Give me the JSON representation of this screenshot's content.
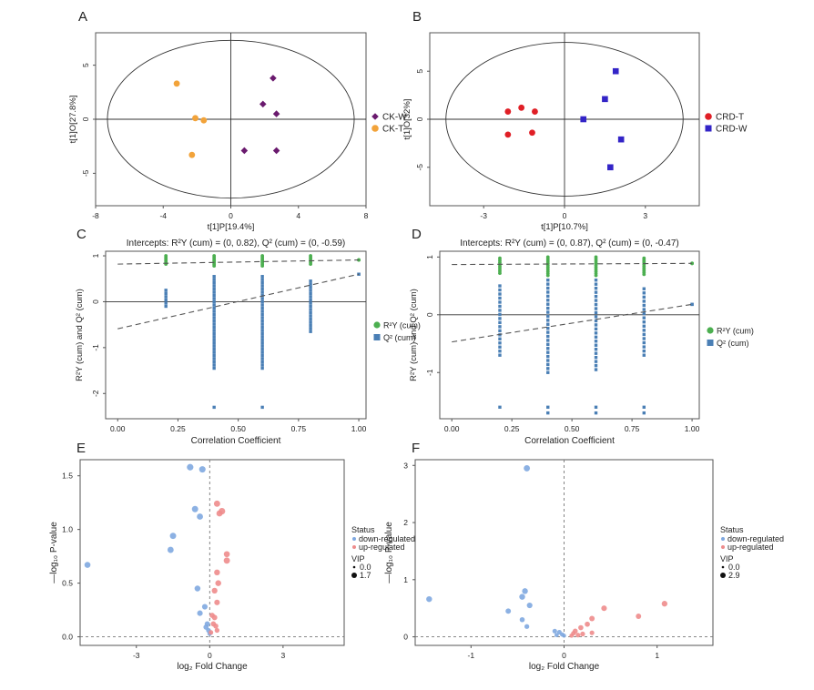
{
  "panels": [
    {
      "letter": "A"
    },
    {
      "letter": "B"
    },
    {
      "letter": "C"
    },
    {
      "letter": "D"
    },
    {
      "letter": "E"
    },
    {
      "letter": "F"
    }
  ],
  "colors": {
    "ck_w": "#6a1a6e",
    "ck_t": "#f2a33a",
    "crd_t": "#e01f26",
    "crd_w": "#3324c7",
    "r2y": "#4caf50",
    "q2": "#4a7fb5",
    "down": "#7fa8e0",
    "up": "#ee8c8c"
  },
  "chart_data": [
    {
      "id": "A",
      "type": "scatter",
      "title": "",
      "xlabel": "t[1]P[19.4%]",
      "ylabel": "t[1]O[27.8%]",
      "xlim": [
        -8,
        8
      ],
      "ylim": [
        -8,
        8
      ],
      "xticks": [
        "-8",
        "-4",
        "0",
        "4",
        "8"
      ],
      "yticks": [
        "5",
        "0",
        "-5"
      ],
      "ellipse": {
        "rx": 7.3,
        "ry": 7.3
      },
      "series": [
        {
          "name": "CK-W",
          "marker": "diamond",
          "color": "#6a1a6e",
          "points": [
            [
              2.5,
              3.8
            ],
            [
              1.9,
              1.4
            ],
            [
              2.7,
              0.5
            ],
            [
              0.8,
              -2.9
            ],
            [
              2.7,
              -2.9
            ]
          ]
        },
        {
          "name": "CK-T",
          "marker": "circle",
          "color": "#f2a33a",
          "points": [
            [
              -3.2,
              3.3
            ],
            [
              -2.1,
              0.1
            ],
            [
              -1.6,
              -0.1
            ],
            [
              -2.3,
              -3.3
            ]
          ]
        }
      ],
      "legend": [
        "CK-W",
        "CK-T"
      ]
    },
    {
      "id": "B",
      "type": "scatter",
      "title": "",
      "xlabel": "t[1]P[10.7%]",
      "ylabel": "t[1]O[32%]",
      "xlim": [
        -5,
        5
      ],
      "ylim": [
        -9,
        9
      ],
      "xticks": [
        "-3",
        "0",
        "3"
      ],
      "yticks": [
        "5",
        "0",
        "-5"
      ],
      "ellipse": {
        "rx": 4.4,
        "ry": 8.0
      },
      "series": [
        {
          "name": "CRD-T",
          "marker": "circle",
          "color": "#e01f26",
          "points": [
            [
              -2.1,
              0.8
            ],
            [
              -1.6,
              1.2
            ],
            [
              -1.1,
              0.8
            ],
            [
              -2.1,
              -1.6
            ],
            [
              -1.2,
              -1.4
            ]
          ]
        },
        {
          "name": "CRD-W",
          "marker": "square",
          "color": "#3324c7",
          "points": [
            [
              1.9,
              5.0
            ],
            [
              1.5,
              2.1
            ],
            [
              0.7,
              0.0
            ],
            [
              2.1,
              -2.1
            ],
            [
              1.7,
              -5.0
            ]
          ]
        }
      ],
      "legend": [
        "CRD-T",
        "CRD-W"
      ]
    },
    {
      "id": "C",
      "type": "scatter",
      "title": "Intercepts: R²Y (cum) = (0, 0.82), Q² (cum) = (0, -0.59)",
      "xlabel": "Correlation Coefficient",
      "ylabel": "R²Y (cum) and Q² (cum)",
      "xlim": [
        -0.05,
        1.03
      ],
      "ylim": [
        -2.55,
        1.1
      ],
      "xticks": [
        "0.00",
        "0.25",
        "0.50",
        "0.75",
        "1.00"
      ],
      "yticks": [
        "1",
        "0",
        "-1",
        "-2"
      ],
      "r2y_line": [
        [
          0,
          0.82
        ],
        [
          1.0,
          0.91
        ]
      ],
      "q2_line": [
        [
          0,
          -0.59
        ],
        [
          1.0,
          0.6
        ]
      ],
      "r2y_points": {
        "0.2": [
          0.82,
          1.0
        ],
        "0.4": [
          0.78,
          1.0
        ],
        "0.6": [
          0.78,
          1.0
        ],
        "0.8": [
          0.82,
          1.0
        ],
        "1.0": [
          0.91,
          0.91
        ]
      },
      "q2_points": {
        "0.2": [
          -0.1,
          0.25
        ],
        "0.4": [
          -1.45,
          0.55
        ],
        "0.6": [
          -1.45,
          0.55
        ],
        "0.8": [
          -0.65,
          0.45
        ],
        "1.0": [
          0.6,
          0.6
        ]
      },
      "q2_outliers": [
        [
          0.4,
          -2.3
        ],
        [
          0.6,
          -2.3
        ]
      ],
      "legend": [
        "R²Y (cum)",
        "Q² (cum)"
      ]
    },
    {
      "id": "D",
      "type": "scatter",
      "title": "Intercepts: R²Y (cum) = (0, 0.87), Q² (cum) = (0, -0.47)",
      "xlabel": "Correlation Coefficient",
      "ylabel": "R²Y (cum) and Q² (cum)",
      "xlim": [
        -0.05,
        1.03
      ],
      "ylim": [
        -1.8,
        1.1
      ],
      "xticks": [
        "0.00",
        "0.25",
        "0.50",
        "0.75",
        "1.00"
      ],
      "yticks": [
        "1",
        "0",
        "-1"
      ],
      "r2y_line": [
        [
          0,
          0.87
        ],
        [
          1.0,
          0.89
        ]
      ],
      "q2_line": [
        [
          0,
          -0.47
        ],
        [
          1.0,
          0.18
        ]
      ],
      "r2y_points": {
        "0.2": [
          0.72,
          0.98
        ],
        "0.4": [
          0.68,
          1.0
        ],
        "0.6": [
          0.68,
          1.0
        ],
        "0.8": [
          0.7,
          0.98
        ],
        "1.0": [
          0.89,
          0.89
        ]
      },
      "q2_points": {
        "0.2": [
          -0.7,
          0.5
        ],
        "0.4": [
          -1.0,
          0.6
        ],
        "0.6": [
          -0.95,
          0.6
        ],
        "0.8": [
          -0.7,
          0.45
        ],
        "1.0": [
          0.18,
          0.18
        ]
      },
      "q2_outliers": [
        [
          0.2,
          -1.6
        ],
        [
          0.4,
          -1.6
        ],
        [
          0.6,
          -1.6
        ],
        [
          0.8,
          -1.6
        ],
        [
          0.4,
          -1.7
        ],
        [
          0.6,
          -1.7
        ],
        [
          0.8,
          -1.7
        ]
      ],
      "legend": [
        "R²Y (cum)",
        "Q² (cum)"
      ]
    },
    {
      "id": "E",
      "type": "scatter",
      "title": "",
      "xlabel": "log₂ Fold Change",
      "ylabel": "—log₁₀ P-value",
      "xlim": [
        -5.3,
        5.5
      ],
      "ylim": [
        -0.08,
        1.65
      ],
      "xticks": [
        "-3",
        "0",
        "3"
      ],
      "yticks": [
        "0.0",
        "0.5",
        "1.0",
        "1.5"
      ],
      "threshold_y": 0.0,
      "threshold_x": 0.0,
      "legend_title": "Status",
      "legend": [
        "down-regulated",
        "up-regulated"
      ],
      "vip_title": "VIP",
      "vip_values": [
        "0.0",
        "1.7"
      ],
      "down": [
        [
          -5.0,
          0.67,
          1.3
        ],
        [
          -0.8,
          1.58,
          1.7
        ],
        [
          -0.3,
          1.56,
          1.6
        ],
        [
          -0.6,
          1.19,
          1.5
        ],
        [
          -0.4,
          1.12,
          1.4
        ],
        [
          -1.5,
          0.94,
          1.5
        ],
        [
          -1.6,
          0.81,
          1.4
        ],
        [
          -0.5,
          0.45,
          1.2
        ],
        [
          -0.4,
          0.22,
          1.0
        ],
        [
          -0.2,
          0.28,
          1.0
        ],
        [
          -0.1,
          0.12,
          0.8
        ],
        [
          -0.15,
          0.09,
          0.8
        ],
        [
          -0.05,
          0.06,
          0.6
        ],
        [
          0.0,
          0.03,
          0.5
        ]
      ],
      "up": [
        [
          0.3,
          1.24,
          1.5
        ],
        [
          0.5,
          1.17,
          1.7
        ],
        [
          0.4,
          1.15,
          1.4
        ],
        [
          0.7,
          0.77,
          1.3
        ],
        [
          0.7,
          0.71,
          1.5
        ],
        [
          0.3,
          0.6,
          1.2
        ],
        [
          0.35,
          0.5,
          1.2
        ],
        [
          0.2,
          0.43,
          1.1
        ],
        [
          0.3,
          0.32,
          1.0
        ],
        [
          0.1,
          0.2,
          0.8
        ],
        [
          0.2,
          0.18,
          0.9
        ],
        [
          0.15,
          0.12,
          0.8
        ],
        [
          0.25,
          0.1,
          0.7
        ],
        [
          0.3,
          0.06,
          0.6
        ],
        [
          0.05,
          0.04,
          0.5
        ]
      ]
    },
    {
      "id": "F",
      "type": "scatter",
      "title": "",
      "xlabel": "log₂ Fold Change",
      "ylabel": "—log₁₀ P-value",
      "xlim": [
        -1.6,
        1.6
      ],
      "ylim": [
        -0.15,
        3.1
      ],
      "xticks": [
        "-1",
        "0",
        "1"
      ],
      "yticks": [
        "0",
        "1",
        "2",
        "3"
      ],
      "threshold_y": 0.0,
      "threshold_x": 0.0,
      "legend_title": "Status",
      "legend": [
        "down-regulated",
        "up-regulated"
      ],
      "vip_title": "VIP",
      "vip_values": [
        "0.0",
        "2.9"
      ],
      "down": [
        [
          -0.4,
          2.95,
          2.5
        ],
        [
          -1.45,
          0.66,
          2.0
        ],
        [
          -0.42,
          0.8,
          2.0
        ],
        [
          -0.45,
          0.7,
          2.0
        ],
        [
          -0.37,
          0.55,
          1.8
        ],
        [
          -0.6,
          0.45,
          1.5
        ],
        [
          -0.45,
          0.3,
          1.2
        ],
        [
          -0.4,
          0.18,
          1.0
        ],
        [
          -0.1,
          0.1,
          0.9
        ],
        [
          -0.05,
          0.08,
          0.8
        ],
        [
          -0.02,
          0.04,
          0.7
        ],
        [
          -0.08,
          0.03,
          0.6
        ],
        [
          0.0,
          0.02,
          0.5
        ]
      ],
      "up": [
        [
          1.08,
          0.58,
          1.9
        ],
        [
          0.8,
          0.36,
          1.5
        ],
        [
          0.43,
          0.5,
          1.7
        ],
        [
          0.3,
          0.32,
          1.5
        ],
        [
          0.25,
          0.22,
          1.3
        ],
        [
          0.18,
          0.16,
          1.3
        ],
        [
          0.12,
          0.1,
          1.2
        ],
        [
          0.2,
          0.05,
          1.0
        ],
        [
          0.15,
          0.03,
          0.9
        ],
        [
          0.1,
          0.06,
          0.8
        ],
        [
          0.08,
          0.02,
          0.6
        ],
        [
          0.3,
          0.07,
          0.9
        ]
      ]
    }
  ]
}
